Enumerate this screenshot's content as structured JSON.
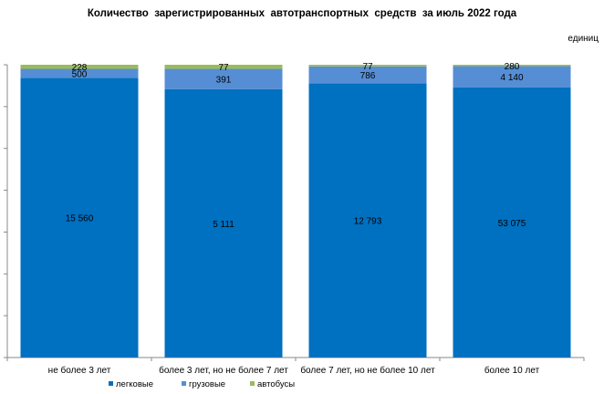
{
  "chart_data": {
    "type": "bar",
    "stacked": true,
    "normalized_percent": true,
    "title": "Количество  зарегистрированных  автотранспортных  средств  за июль 2022 года",
    "unit_label": "единиц",
    "categories": [
      "не более 3 лет",
      "более 3 лет, но не более 7 лет",
      "более 7 лет, но не более 10 лет",
      "более 10 лет"
    ],
    "series": [
      {
        "name": "легковые",
        "values": [
          15560,
          5111,
          12793,
          53075
        ],
        "labels": [
          "15 560",
          "5 111",
          "12 793",
          "53 075"
        ],
        "color": "#0070C0"
      },
      {
        "name": "грузовые",
        "values": [
          500,
          391,
          786,
          4140
        ],
        "labels": [
          "500",
          "391",
          "786",
          "4 140"
        ],
        "color": "#558ED5"
      },
      {
        "name": "автобусы",
        "values": [
          228,
          77,
          77,
          280
        ],
        "labels": [
          "228",
          "77",
          "77",
          "280"
        ],
        "color": "#9BBB59"
      }
    ],
    "legend_position": "bottom",
    "grid": false
  }
}
